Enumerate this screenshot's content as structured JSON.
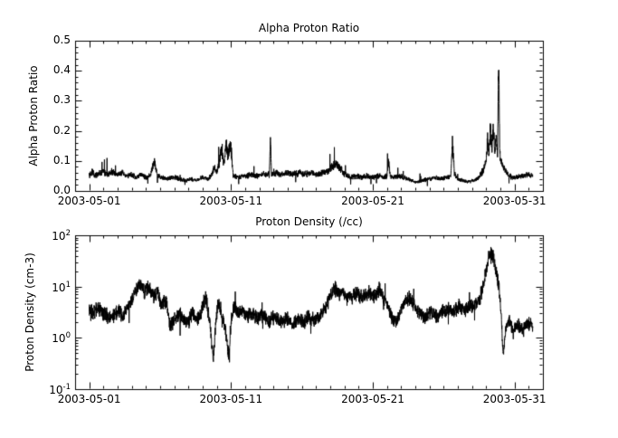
{
  "page": {
    "background": "#ffffff",
    "line_color": "#000000"
  },
  "chart_data": [
    {
      "type": "line",
      "title": "Alpha Proton Ratio",
      "ylabel": "Alpha Proton Ratio",
      "yscale": "linear",
      "xlim": [
        0,
        33
      ],
      "ylim": [
        0.0,
        0.5
      ],
      "x_tick_days": [
        1,
        11,
        21,
        31
      ],
      "x_tick_labels": [
        "2003-05-01",
        "2003-05-11",
        "2003-05-21",
        "2003-05-31"
      ],
      "x_minor_step": 1,
      "y_ticks": [
        0.0,
        0.1,
        0.2,
        0.3,
        0.4,
        0.5
      ],
      "y_tick_labels": [
        "0.0",
        "0.1",
        "0.2",
        "0.3",
        "0.4",
        "0.5"
      ],
      "y_minor_step": 0.02,
      "grid": false,
      "legend": false,
      "noise": {
        "seed": 20030501,
        "rel_amp": 0.22,
        "step_days": 0.01,
        "spike_prob": 0.004,
        "spike_up": 1.6,
        "spike_down": 0.5
      },
      "series": [
        {
          "name": "alpha-proton-ratio",
          "points": [
            [
              1.0,
              0.05
            ],
            [
              1.2,
              0.065
            ],
            [
              1.4,
              0.05
            ],
            [
              1.7,
              0.06
            ],
            [
              2.0,
              0.065
            ],
            [
              2.3,
              0.055
            ],
            [
              2.6,
              0.065
            ],
            [
              3.0,
              0.055
            ],
            [
              3.3,
              0.06
            ],
            [
              3.6,
              0.05
            ],
            [
              4.0,
              0.055
            ],
            [
              4.3,
              0.045
            ],
            [
              4.6,
              0.055
            ],
            [
              5.0,
              0.045
            ],
            [
              5.3,
              0.05
            ],
            [
              5.6,
              0.1
            ],
            [
              5.8,
              0.05
            ],
            [
              6.1,
              0.045
            ],
            [
              6.5,
              0.04
            ],
            [
              7.0,
              0.045
            ],
            [
              7.4,
              0.04
            ],
            [
              7.8,
              0.035
            ],
            [
              8.2,
              0.04
            ],
            [
              8.6,
              0.035
            ],
            [
              9.0,
              0.045
            ],
            [
              9.4,
              0.04
            ],
            [
              9.6,
              0.05
            ],
            [
              9.8,
              0.08
            ],
            [
              10.0,
              0.06
            ],
            [
              10.2,
              0.1
            ],
            [
              10.35,
              0.15
            ],
            [
              10.5,
              0.09
            ],
            [
              10.65,
              0.16
            ],
            [
              10.8,
              0.11
            ],
            [
              10.95,
              0.17
            ],
            [
              11.05,
              0.12
            ],
            [
              11.15,
              0.05
            ],
            [
              11.5,
              0.045
            ],
            [
              12.0,
              0.05
            ],
            [
              12.4,
              0.055
            ],
            [
              12.8,
              0.05
            ],
            [
              13.2,
              0.055
            ],
            [
              13.7,
              0.055
            ],
            [
              13.78,
              0.17
            ],
            [
              13.86,
              0.055
            ],
            [
              14.2,
              0.06
            ],
            [
              14.6,
              0.055
            ],
            [
              15.0,
              0.06
            ],
            [
              15.4,
              0.055
            ],
            [
              15.8,
              0.06
            ],
            [
              16.2,
              0.055
            ],
            [
              16.6,
              0.06
            ],
            [
              17.0,
              0.055
            ],
            [
              17.4,
              0.06
            ],
            [
              17.8,
              0.065
            ],
            [
              18.1,
              0.08
            ],
            [
              18.4,
              0.09
            ],
            [
              18.7,
              0.075
            ],
            [
              19.0,
              0.055
            ],
            [
              19.4,
              0.045
            ],
            [
              19.8,
              0.05
            ],
            [
              20.2,
              0.045
            ],
            [
              20.6,
              0.05
            ],
            [
              21.0,
              0.045
            ],
            [
              21.4,
              0.05
            ],
            [
              21.8,
              0.045
            ],
            [
              22.0,
              0.05
            ],
            [
              22.1,
              0.1
            ],
            [
              22.25,
              0.05
            ],
            [
              22.6,
              0.045
            ],
            [
              23.0,
              0.05
            ],
            [
              23.4,
              0.04
            ],
            [
              23.8,
              0.035
            ],
            [
              24.1,
              0.028
            ],
            [
              24.5,
              0.035
            ],
            [
              25.0,
              0.04
            ],
            [
              25.4,
              0.045
            ],
            [
              25.8,
              0.04
            ],
            [
              26.2,
              0.045
            ],
            [
              26.5,
              0.05
            ],
            [
              26.62,
              0.17
            ],
            [
              26.75,
              0.06
            ],
            [
              27.0,
              0.04
            ],
            [
              27.3,
              0.035
            ],
            [
              27.7,
              0.03
            ],
            [
              28.1,
              0.035
            ],
            [
              28.5,
              0.045
            ],
            [
              28.8,
              0.07
            ],
            [
              29.0,
              0.1
            ],
            [
              29.1,
              0.17
            ],
            [
              29.2,
              0.12
            ],
            [
              29.3,
              0.2
            ],
            [
              29.4,
              0.15
            ],
            [
              29.5,
              0.22
            ],
            [
              29.6,
              0.13
            ],
            [
              29.7,
              0.18
            ],
            [
              29.8,
              0.12
            ],
            [
              29.88,
              0.46
            ],
            [
              29.96,
              0.12
            ],
            [
              30.1,
              0.09
            ],
            [
              30.3,
              0.07
            ],
            [
              30.6,
              0.05
            ],
            [
              31.0,
              0.045
            ],
            [
              31.5,
              0.05
            ],
            [
              32.0,
              0.055
            ],
            [
              32.3,
              0.05
            ]
          ]
        }
      ]
    },
    {
      "type": "line",
      "title": "Proton Density (/cc)",
      "ylabel": "Proton Density (cm-3)",
      "yscale": "log",
      "xlim": [
        0,
        33
      ],
      "ylim": [
        0.1,
        100
      ],
      "x_tick_days": [
        1,
        11,
        21,
        31
      ],
      "x_tick_labels": [
        "2003-05-01",
        "2003-05-11",
        "2003-05-21",
        "2003-05-31"
      ],
      "x_minor_step": 1,
      "y_tick_values": [
        0.1,
        1,
        10,
        100
      ],
      "y_tick_exponents": [
        -1,
        0,
        1,
        2
      ],
      "grid": false,
      "legend": false,
      "noise": {
        "seed": 20030502,
        "rel_amp": 0.38,
        "step_days": 0.01,
        "spike_prob": 0.004,
        "spike_up": 1.5,
        "spike_down": 0.5
      },
      "series": [
        {
          "name": "proton-density",
          "points": [
            [
              1.0,
              3.5
            ],
            [
              1.3,
              3.0
            ],
            [
              1.6,
              3.8
            ],
            [
              2.0,
              3.0
            ],
            [
              2.4,
              2.5
            ],
            [
              2.8,
              2.8
            ],
            [
              3.1,
              3.4
            ],
            [
              3.4,
              2.6
            ],
            [
              3.7,
              4.0
            ],
            [
              4.0,
              5.5
            ],
            [
              4.3,
              8.5
            ],
            [
              4.6,
              12.0
            ],
            [
              4.9,
              8.0
            ],
            [
              5.2,
              10.0
            ],
            [
              5.5,
              6.5
            ],
            [
              5.8,
              8.0
            ],
            [
              6.1,
              4.5
            ],
            [
              6.4,
              5.5
            ],
            [
              6.7,
              1.8
            ],
            [
              7.0,
              2.2
            ],
            [
              7.3,
              3.0
            ],
            [
              7.6,
              2.4
            ],
            [
              8.0,
              2.0
            ],
            [
              8.3,
              3.2
            ],
            [
              8.6,
              2.2
            ],
            [
              8.9,
              3.0
            ],
            [
              9.2,
              6.5
            ],
            [
              9.5,
              2.0
            ],
            [
              9.75,
              0.35
            ],
            [
              9.9,
              1.5
            ],
            [
              10.1,
              5.0
            ],
            [
              10.3,
              3.5
            ],
            [
              10.5,
              2.0
            ],
            [
              10.7,
              1.0
            ],
            [
              10.85,
              0.4
            ],
            [
              11.0,
              2.0
            ],
            [
              11.2,
              4.2
            ],
            [
              11.5,
              3.0
            ],
            [
              11.8,
              3.6
            ],
            [
              12.1,
              2.6
            ],
            [
              12.5,
              3.0
            ],
            [
              12.9,
              2.4
            ],
            [
              13.3,
              2.8
            ],
            [
              13.7,
              2.2
            ],
            [
              14.1,
              2.6
            ],
            [
              14.5,
              2.0
            ],
            [
              14.9,
              2.4
            ],
            [
              15.3,
              1.8
            ],
            [
              15.7,
              2.3
            ],
            [
              16.1,
              2.0
            ],
            [
              16.5,
              2.6
            ],
            [
              16.9,
              2.2
            ],
            [
              17.3,
              2.8
            ],
            [
              17.7,
              4.0
            ],
            [
              18.0,
              6.5
            ],
            [
              18.3,
              9.5
            ],
            [
              18.6,
              7.0
            ],
            [
              18.9,
              8.0
            ],
            [
              19.2,
              5.5
            ],
            [
              19.5,
              6.5
            ],
            [
              19.9,
              7.5
            ],
            [
              20.3,
              6.0
            ],
            [
              20.7,
              8.0
            ],
            [
              21.1,
              6.5
            ],
            [
              21.5,
              8.5
            ],
            [
              21.8,
              6.0
            ],
            [
              22.1,
              4.0
            ],
            [
              22.4,
              2.2
            ],
            [
              22.7,
              2.0
            ],
            [
              23.0,
              3.5
            ],
            [
              23.3,
              5.5
            ],
            [
              23.6,
              6.0
            ],
            [
              23.9,
              4.5
            ],
            [
              24.3,
              3.0
            ],
            [
              24.7,
              2.6
            ],
            [
              25.1,
              3.2
            ],
            [
              25.5,
              2.6
            ],
            [
              25.9,
              3.0
            ],
            [
              26.3,
              3.6
            ],
            [
              26.7,
              3.2
            ],
            [
              27.1,
              4.2
            ],
            [
              27.5,
              3.4
            ],
            [
              27.9,
              4.2
            ],
            [
              28.3,
              4.5
            ],
            [
              28.6,
              6.0
            ],
            [
              28.9,
              15.0
            ],
            [
              29.1,
              30.0
            ],
            [
              29.3,
              50.0
            ],
            [
              29.5,
              38.0
            ],
            [
              29.7,
              20.0
            ],
            [
              29.9,
              10.0
            ],
            [
              30.05,
              3.0
            ],
            [
              30.2,
              0.45
            ],
            [
              30.35,
              1.2
            ],
            [
              30.6,
              2.2
            ],
            [
              30.9,
              1.3
            ],
            [
              31.2,
              1.8
            ],
            [
              31.6,
              1.4
            ],
            [
              32.0,
              1.9
            ],
            [
              32.3,
              1.7
            ]
          ]
        }
      ]
    }
  ]
}
